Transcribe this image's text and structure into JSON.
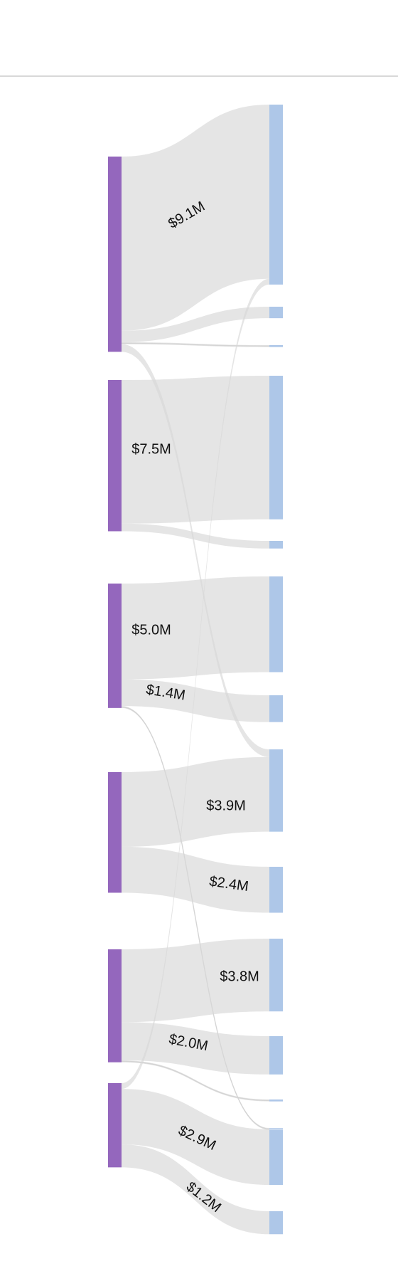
{
  "colors": {
    "source": "#9467bd",
    "target": "#aec7e8",
    "link": "#d7d7d7",
    "background": "#ffffff"
  },
  "chart_data": {
    "type": "sankey",
    "title": "",
    "value_unit": "$M",
    "sources": [
      {
        "id": "s1"
      },
      {
        "id": "s2"
      },
      {
        "id": "s3"
      },
      {
        "id": "s4"
      },
      {
        "id": "s5"
      },
      {
        "id": "s6"
      }
    ],
    "targets": [
      {
        "id": "t1"
      },
      {
        "id": "t2"
      },
      {
        "id": "t3"
      },
      {
        "id": "t4"
      },
      {
        "id": "t5"
      },
      {
        "id": "t6"
      },
      {
        "id": "t7"
      },
      {
        "id": "t8"
      },
      {
        "id": "t9"
      },
      {
        "id": "t10"
      },
      {
        "id": "t11"
      },
      {
        "id": "t12"
      },
      {
        "id": "t13"
      },
      {
        "id": "t14"
      },
      {
        "id": "t15"
      }
    ],
    "links": [
      {
        "source": "s1",
        "target": "t1",
        "value": 9.1,
        "label": "$9.1M"
      },
      {
        "source": "s1",
        "target": "t2",
        "value": 0.6
      },
      {
        "source": "s1",
        "target": "t3",
        "value": 0.1
      },
      {
        "source": "s1",
        "target": "t8",
        "value": 0.4
      },
      {
        "source": "s2",
        "target": "t4",
        "value": 7.5,
        "label": "$7.5M"
      },
      {
        "source": "s2",
        "target": "t5",
        "value": 0.4
      },
      {
        "source": "s3",
        "target": "t6",
        "value": 5.0,
        "label": "$5.0M"
      },
      {
        "source": "s3",
        "target": "t7",
        "value": 1.4,
        "label": "$1.4M"
      },
      {
        "source": "s3",
        "target": "t14",
        "value": 0.1
      },
      {
        "source": "s4",
        "target": "t8",
        "value": 3.9,
        "label": "$3.9M"
      },
      {
        "source": "s4",
        "target": "t9",
        "value": 2.4,
        "label": "$2.4M"
      },
      {
        "source": "s5",
        "target": "t10",
        "value": 3.8,
        "label": "$3.8M"
      },
      {
        "source": "s5",
        "target": "t11",
        "value": 2.0,
        "label": "$2.0M"
      },
      {
        "source": "s5",
        "target": "t12",
        "value": 0.1
      },
      {
        "source": "s6",
        "target": "t1",
        "value": 0.3
      },
      {
        "source": "s6",
        "target": "t13",
        "value": 2.9,
        "label": "$2.9M"
      },
      {
        "source": "s6",
        "target": "t15",
        "value": 1.2,
        "label": "$1.2M"
      }
    ]
  }
}
